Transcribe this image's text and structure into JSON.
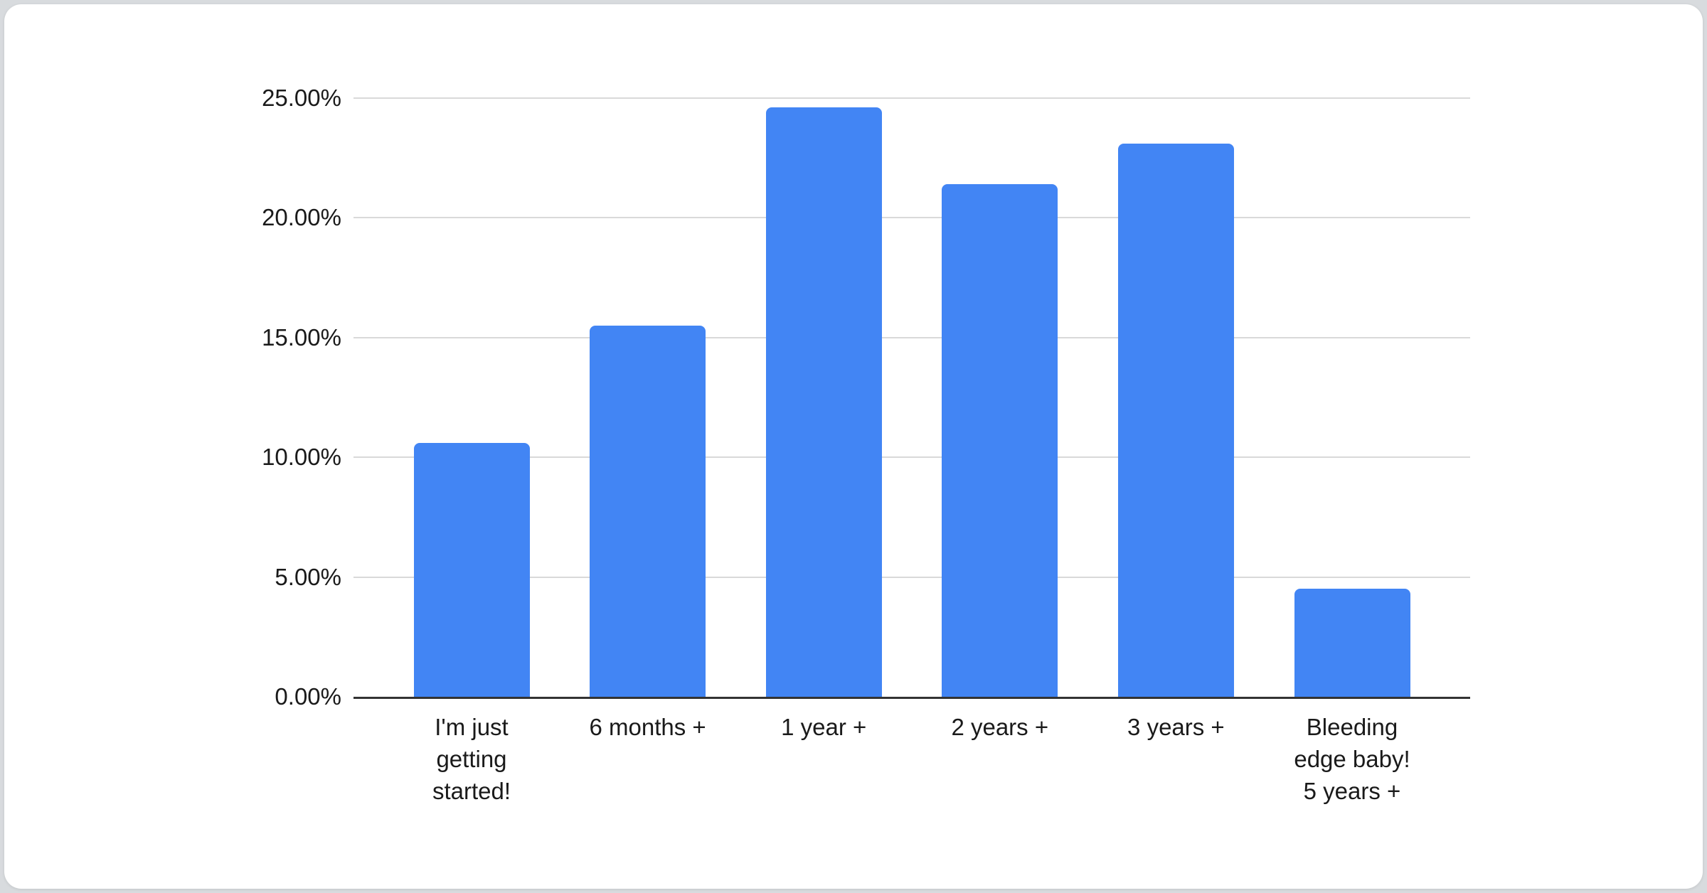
{
  "chart_data": {
    "type": "bar",
    "categories": [
      "I'm just\ngetting\nstarted!",
      "6 months +",
      "1 year +",
      "2 years +",
      "3 years +",
      "Bleeding\nedge baby!\n5 years +"
    ],
    "values": [
      10.6,
      15.5,
      24.6,
      21.4,
      23.1,
      4.5
    ],
    "value_unit": "%",
    "y_ticks": [
      {
        "value": 0,
        "label": "0.00%"
      },
      {
        "value": 5,
        "label": "5.00%"
      },
      {
        "value": 10,
        "label": "10.00%"
      },
      {
        "value": 15,
        "label": "15.00%"
      },
      {
        "value": 20,
        "label": "20.00%"
      },
      {
        "value": 25,
        "label": "25.00%"
      }
    ],
    "ylim": [
      0,
      25
    ],
    "grid": true,
    "legend": "none",
    "title": "",
    "xlabel": "",
    "ylabel": "",
    "colors": {
      "bar": "#4285f4",
      "gridline": "#d9d9d9",
      "axis_line": "#333333",
      "label_text": "#1a1a1a",
      "card_background": "#ffffff",
      "page_background": "#d8dbde"
    }
  }
}
